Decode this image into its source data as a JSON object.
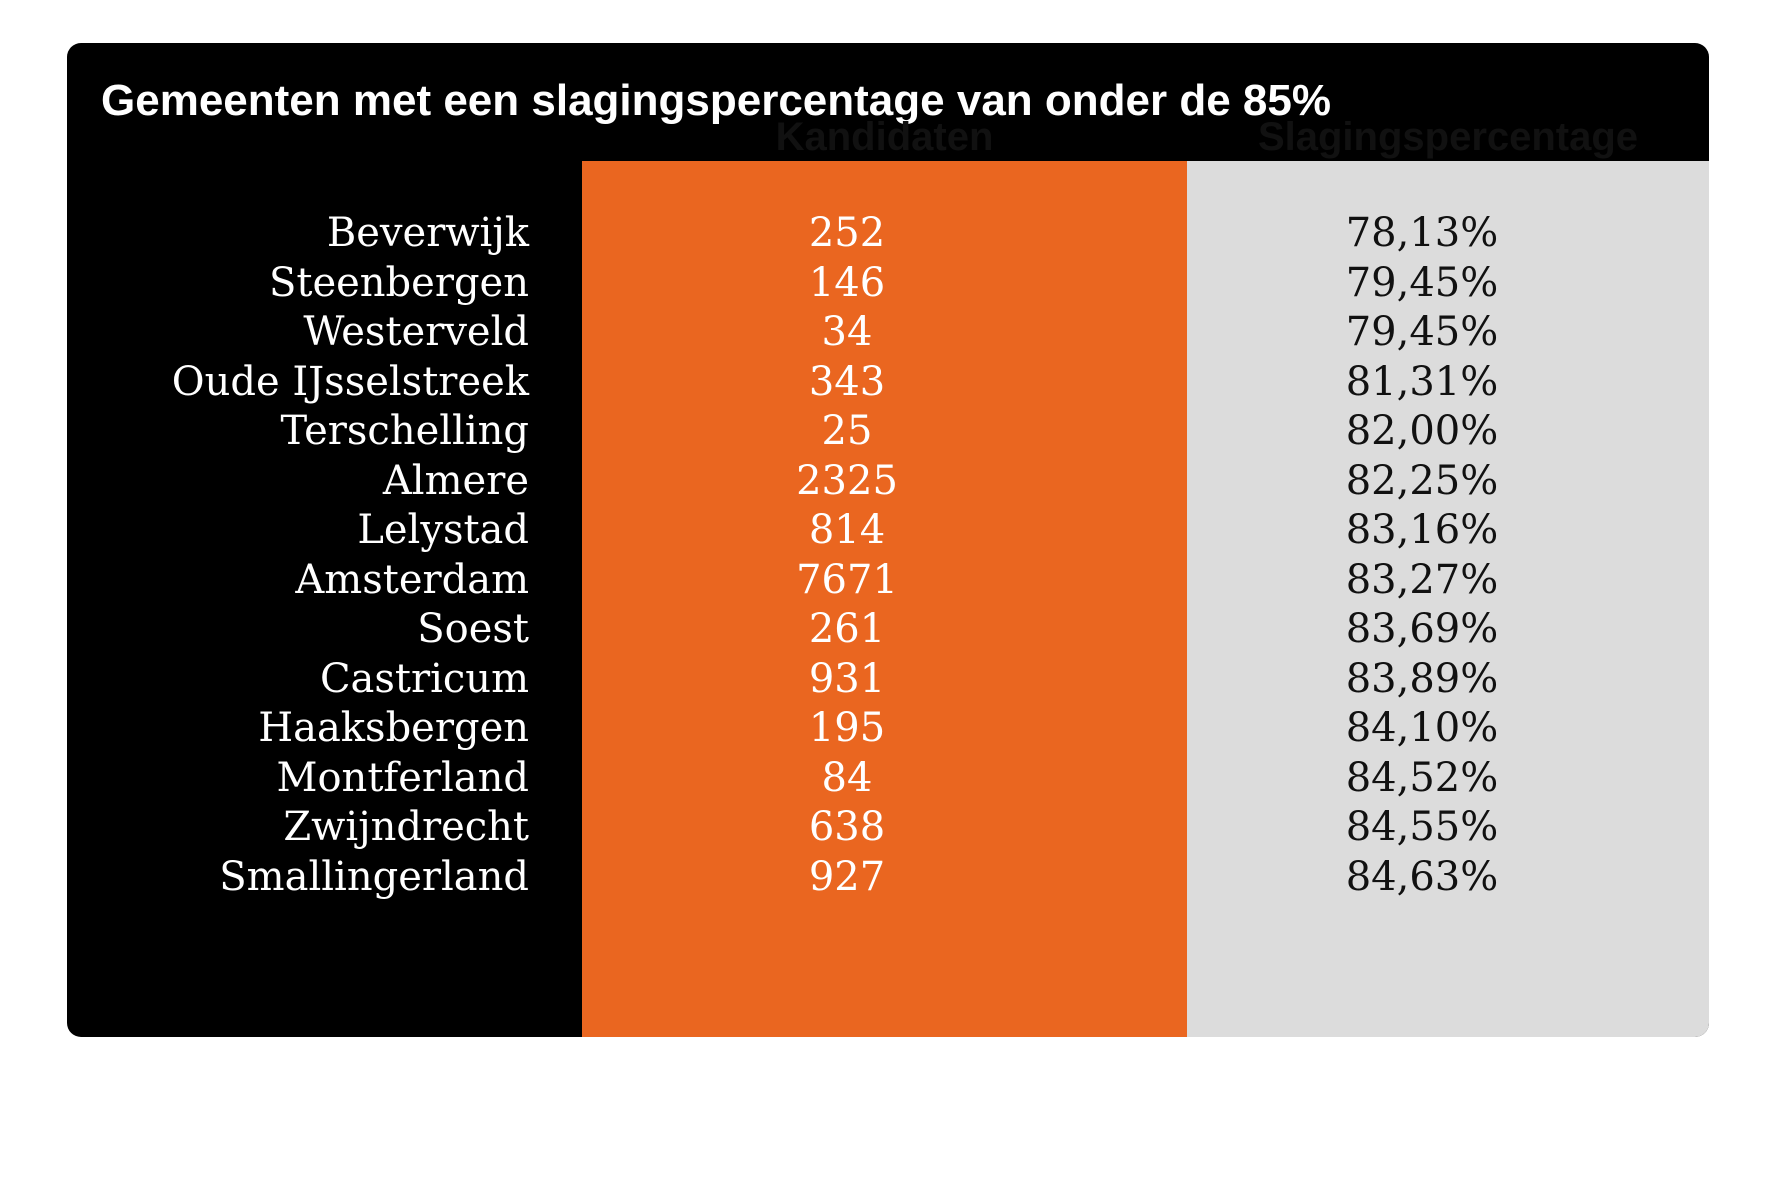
{
  "colors": {
    "background": "#000000",
    "kandidaten_column": "#EA6620",
    "percentage_column": "#DCDCDC",
    "text_light": "#FFFFFF",
    "text_dark": "#111111"
  },
  "chart_data": {
    "type": "table",
    "title": "Gemeenten met een slagingspercentage van onder de 85%",
    "columns": [
      "Kandidaten",
      "Slagingspercentage"
    ],
    "rows": [
      {
        "gemeente": "Beverwijk",
        "kandidaten": "252",
        "percentage": "78,13%"
      },
      {
        "gemeente": "Steenbergen",
        "kandidaten": "146",
        "percentage": "79,45%"
      },
      {
        "gemeente": "Westerveld",
        "kandidaten": "34",
        "percentage": "79,45%"
      },
      {
        "gemeente": "Oude IJsselstreek",
        "kandidaten": "343",
        "percentage": "81,31%"
      },
      {
        "gemeente": "Terschelling",
        "kandidaten": "25",
        "percentage": "82,00%"
      },
      {
        "gemeente": "Almere",
        "kandidaten": "2325",
        "percentage": "82,25%"
      },
      {
        "gemeente": "Lelystad",
        "kandidaten": "814",
        "percentage": "83,16%"
      },
      {
        "gemeente": "Amsterdam",
        "kandidaten": "7671",
        "percentage": "83,27%"
      },
      {
        "gemeente": "Soest",
        "kandidaten": "261",
        "percentage": "83,69%"
      },
      {
        "gemeente": "Castricum",
        "kandidaten": "931",
        "percentage": "83,89%"
      },
      {
        "gemeente": "Haaksbergen",
        "kandidaten": "195",
        "percentage": "84,10%"
      },
      {
        "gemeente": "Montferland",
        "kandidaten": "84",
        "percentage": "84,52%"
      },
      {
        "gemeente": "Zwijndrecht",
        "kandidaten": "638",
        "percentage": "84,55%"
      },
      {
        "gemeente": "Smallingerland",
        "kandidaten": "927",
        "percentage": "84,63%"
      }
    ]
  }
}
